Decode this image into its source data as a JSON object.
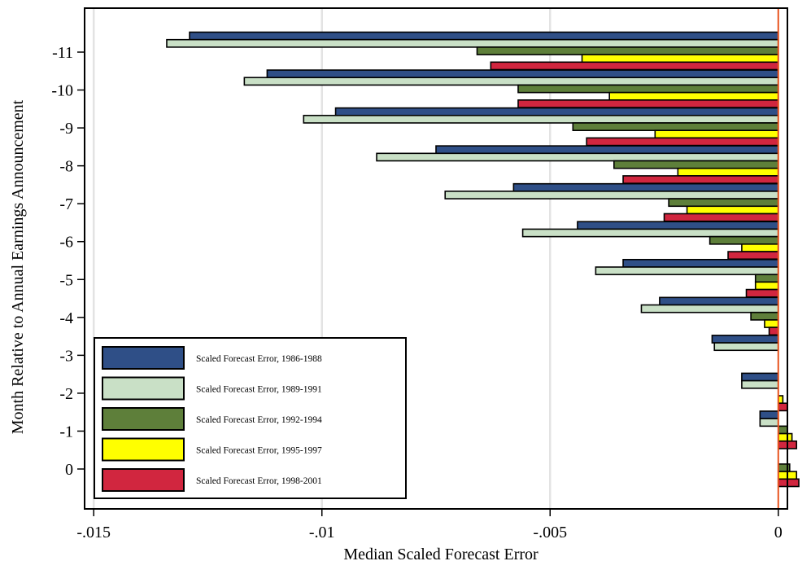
{
  "chart_data": {
    "type": "bar",
    "orientation": "horizontal",
    "title": "",
    "xlabel": "Median Scaled Forecast Error",
    "ylabel": "Month Relative to Annual Earnings Announcement",
    "xlim": [
      -0.0152,
      0.0002
    ],
    "x_ticks": [
      -0.015,
      -0.01,
      -0.005,
      0
    ],
    "x_tick_labels": [
      "-.015",
      "-.01",
      "-.005",
      "0"
    ],
    "categories": [
      "-11",
      "-10",
      "-9",
      "-8",
      "-7",
      "-6",
      "-5",
      "-4",
      "-3",
      "-2",
      "-1",
      "0"
    ],
    "grid": "vertical at x ticks",
    "reference_line": 0,
    "legend_position": "bottom-left",
    "series": [
      {
        "name": "Scaled Forecast Error, 1986-1988",
        "color": "#2f4f87",
        "values": [
          -0.0129,
          -0.0112,
          -0.0097,
          -0.0075,
          -0.0058,
          -0.0044,
          -0.0034,
          -0.0026,
          -0.00145,
          -0.0008,
          -0.0004,
          null
        ]
      },
      {
        "name": "Scaled Forecast Error, 1989-1991",
        "color": "#c9e0c6",
        "values": [
          -0.0134,
          -0.0117,
          -0.0104,
          -0.0088,
          -0.0073,
          -0.0056,
          -0.004,
          -0.003,
          -0.0014,
          -0.0008,
          -0.0004,
          null
        ]
      },
      {
        "name": "Scaled Forecast Error, 1992-1994",
        "color": "#5e7f3a",
        "values": [
          -0.0066,
          -0.0057,
          -0.0045,
          -0.0036,
          -0.0024,
          -0.0015,
          -0.0005,
          -0.0006,
          null,
          null,
          0.0002,
          0.00025
        ]
      },
      {
        "name": "Scaled Forecast Error, 1995-1997",
        "color": "#ffff00",
        "values": [
          -0.0043,
          -0.0037,
          -0.0027,
          -0.0022,
          -0.002,
          -0.0008,
          -0.0005,
          -0.0003,
          null,
          0.0001,
          0.0003,
          0.0004
        ]
      },
      {
        "name": "Scaled Forecast Error, 1998-2001",
        "color": "#d1263f",
        "values": [
          -0.0063,
          -0.0057,
          -0.0042,
          -0.0034,
          -0.0025,
          -0.0011,
          -0.0007,
          -0.0002,
          null,
          0.0002,
          0.0004,
          0.00045
        ]
      }
    ]
  }
}
